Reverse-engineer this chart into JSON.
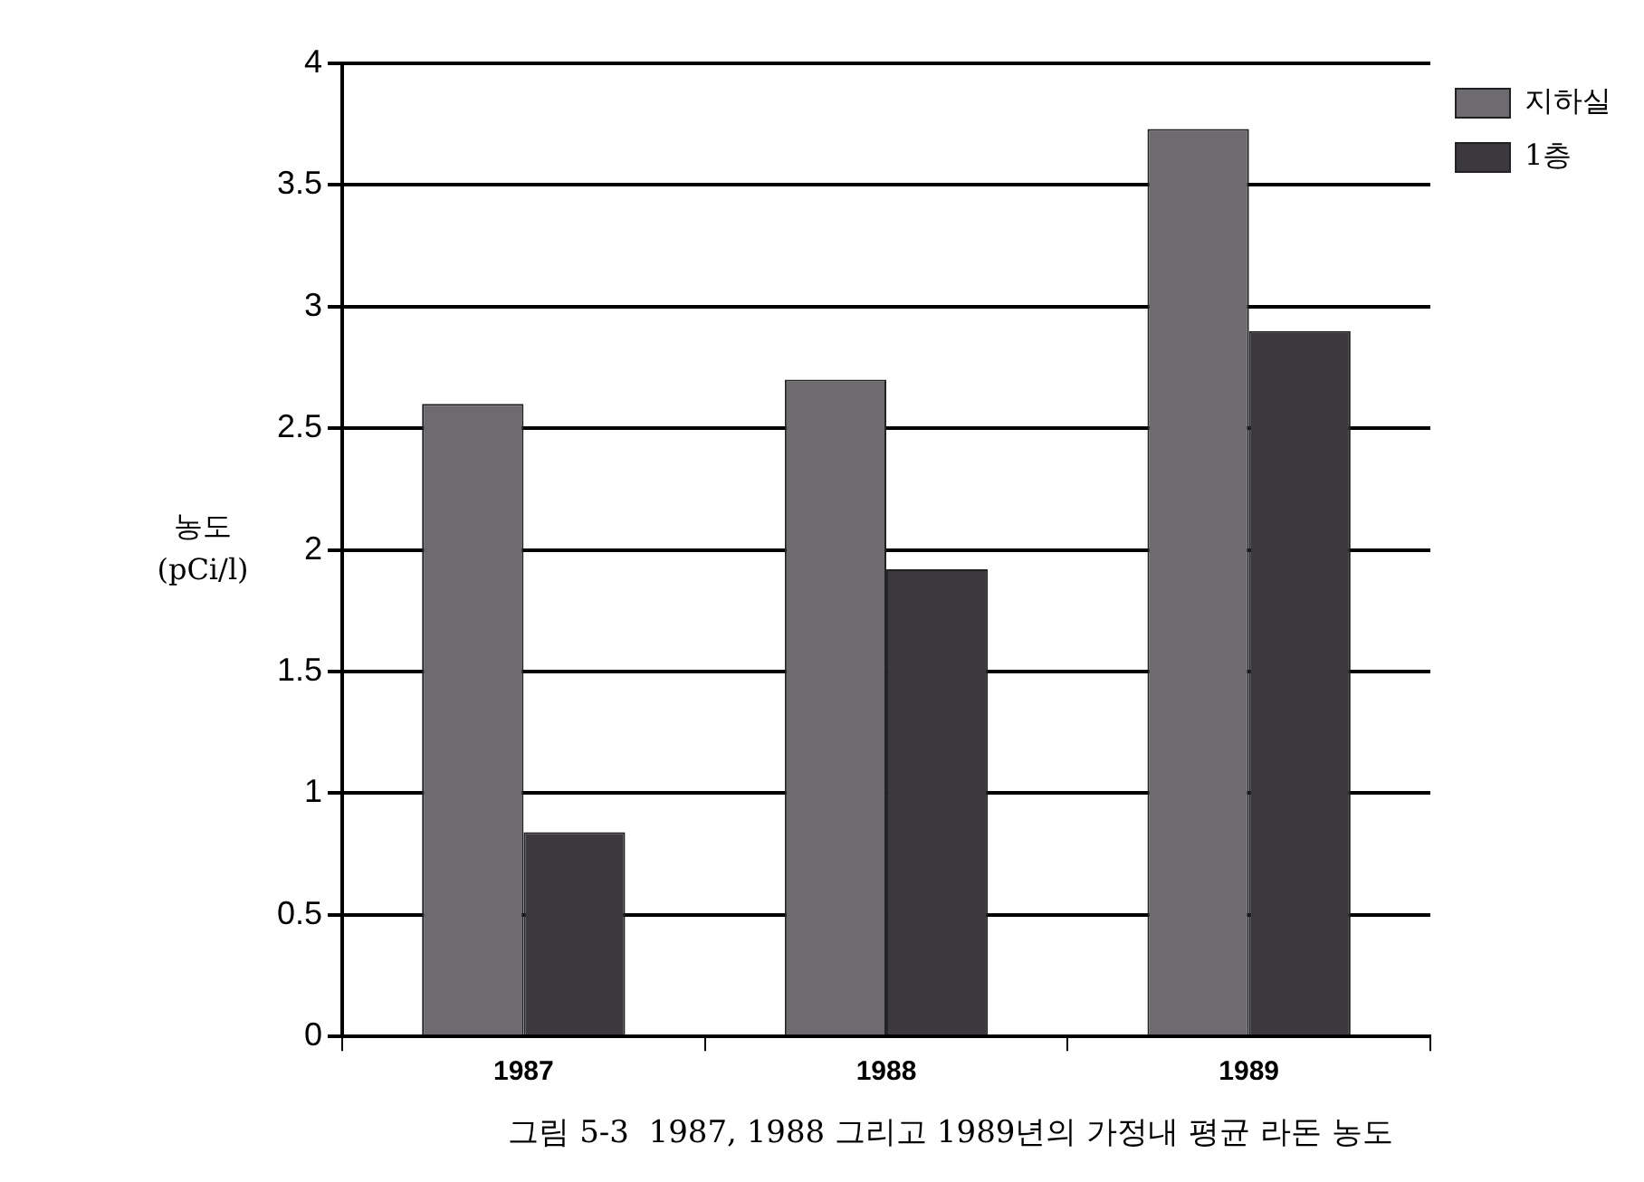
{
  "chart_data": {
    "type": "bar",
    "title": "그림 5-3  1987, 1988 그리고 1989년의 가정내 평균 라돈 농도",
    "ylabel": "농도\n(pCi/l)",
    "categories": [
      "1987",
      "1988",
      "1989"
    ],
    "series": [
      {
        "name": "지하실",
        "color": "#6e6b70",
        "values": [
          2.6,
          2.7,
          3.73
        ]
      },
      {
        "name": "1층",
        "color": "#3b393e",
        "values": [
          0.84,
          1.92,
          2.9
        ]
      }
    ],
    "ylim": [
      0,
      4
    ],
    "yticks": [
      0,
      0.5,
      1,
      1.5,
      2,
      2.5,
      3,
      3.5,
      4
    ],
    "grid": "y",
    "legend": "top right"
  }
}
